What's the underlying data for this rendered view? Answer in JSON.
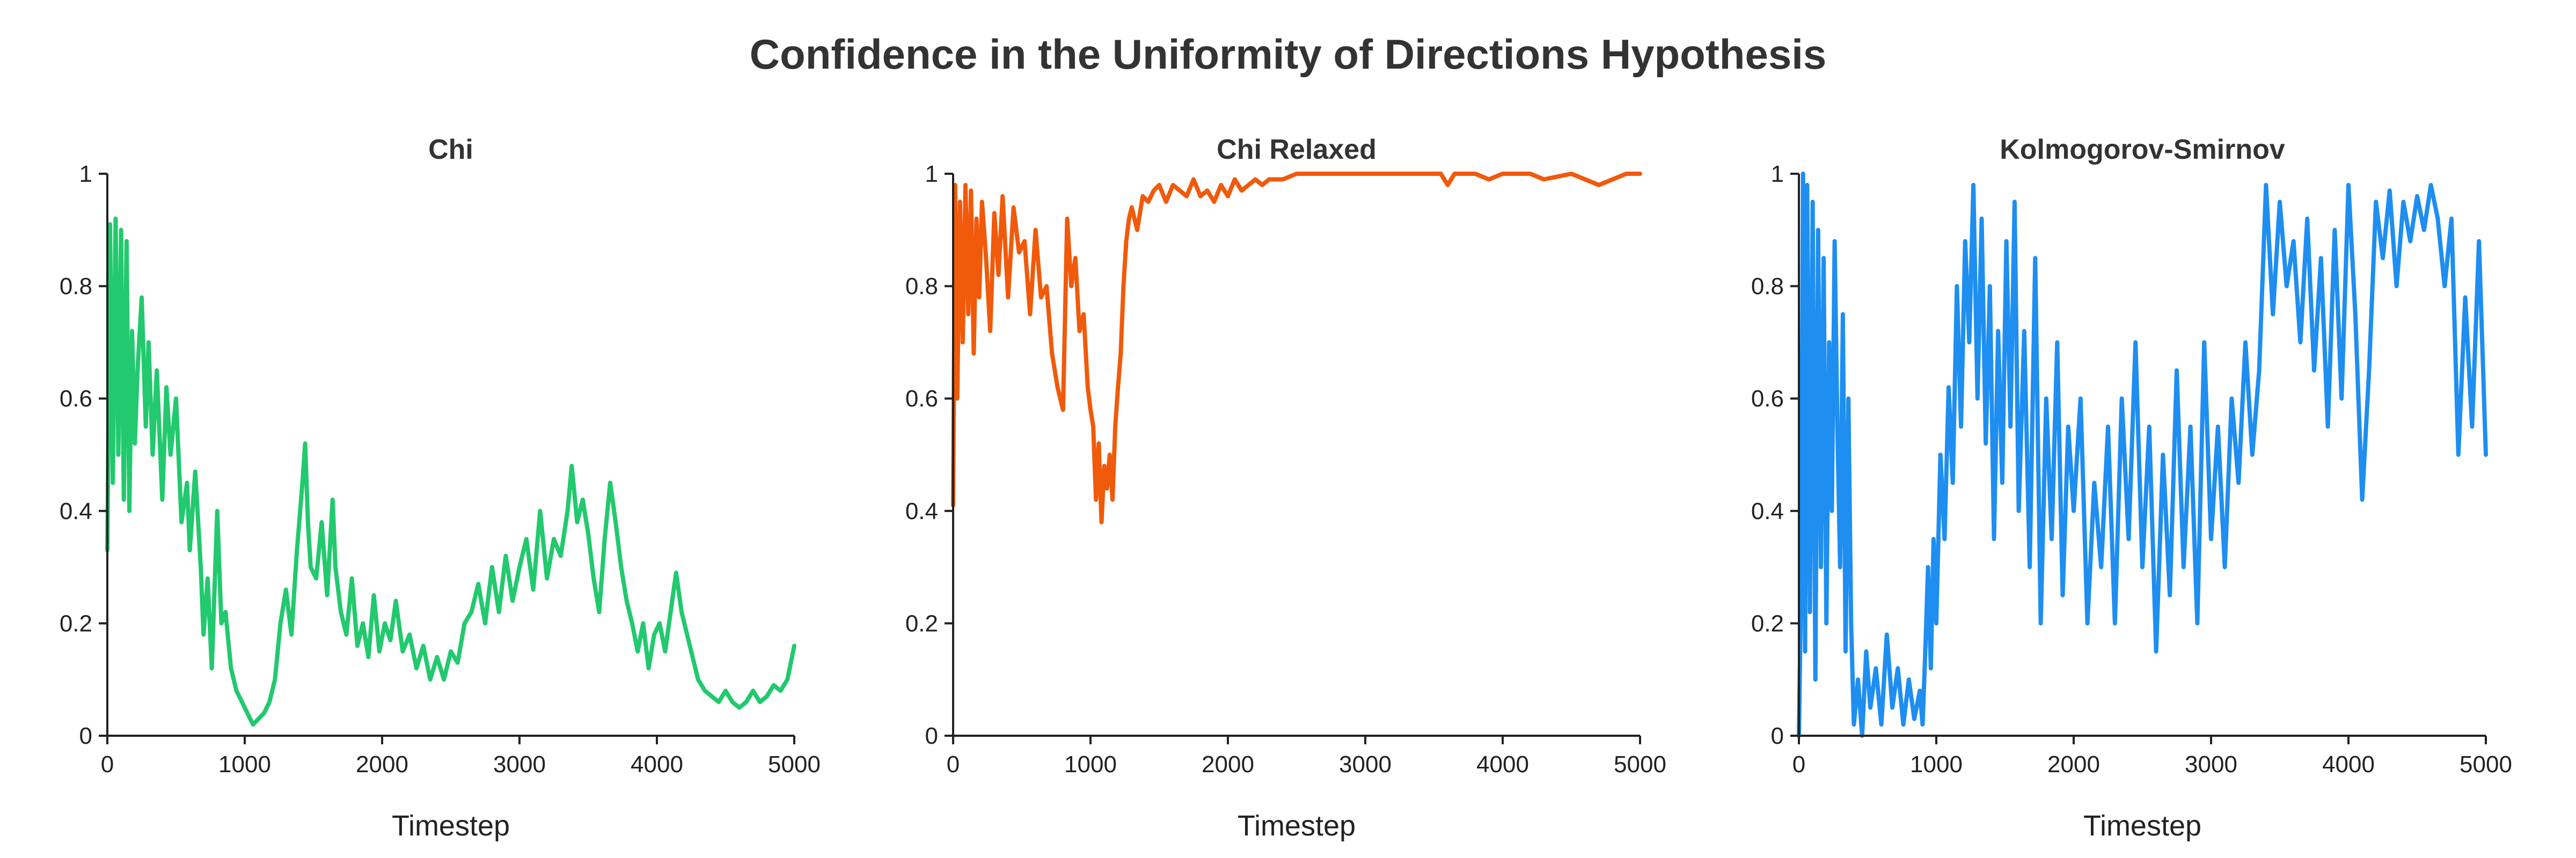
{
  "title": "Confidence in the Uniformity of Directions Hypothesis",
  "chart_data": [
    {
      "type": "line",
      "title": "Chi",
      "xlabel": "Timestep",
      "ylabel": "",
      "xlim": [
        0,
        5000
      ],
      "ylim": [
        0,
        1
      ],
      "xticks": [
        "0",
        "1000",
        "2000",
        "3000",
        "4000",
        "5000"
      ],
      "yticks": [
        "0",
        "0.2",
        "0.4",
        "0.6",
        "0.8",
        "1"
      ],
      "grid": false,
      "color": "#22c96e",
      "series": [
        {
          "x": [
            0,
            20,
            40,
            60,
            80,
            100,
            120,
            140,
            160,
            180,
            200,
            220,
            250,
            280,
            300,
            330,
            360,
            400,
            430,
            460,
            500,
            540,
            580,
            600,
            640,
            680,
            700,
            730,
            760,
            800,
            830,
            860,
            900,
            940,
            980,
            1020,
            1060,
            1100,
            1140,
            1180,
            1220,
            1260,
            1300,
            1340,
            1380,
            1420,
            1440,
            1460,
            1480,
            1520,
            1560,
            1600,
            1640,
            1660,
            1700,
            1740,
            1780,
            1820,
            1860,
            1900,
            1940,
            1980,
            2020,
            2060,
            2100,
            2150,
            2200,
            2250,
            2300,
            2350,
            2400,
            2450,
            2500,
            2550,
            2600,
            2650,
            2700,
            2750,
            2800,
            2850,
            2900,
            2950,
            3000,
            3050,
            3100,
            3150,
            3200,
            3250,
            3300,
            3350,
            3380,
            3420,
            3460,
            3500,
            3540,
            3580,
            3620,
            3660,
            3700,
            3740,
            3780,
            3820,
            3860,
            3900,
            3940,
            3980,
            4020,
            4060,
            4100,
            4140,
            4180,
            4220,
            4260,
            4300,
            4350,
            4400,
            4450,
            4500,
            4550,
            4600,
            4650,
            4700,
            4750,
            4800,
            4850,
            4900,
            4950,
            5000
          ],
          "y": [
            0.33,
            0.91,
            0.45,
            0.92,
            0.5,
            0.9,
            0.42,
            0.88,
            0.4,
            0.72,
            0.52,
            0.65,
            0.78,
            0.55,
            0.7,
            0.5,
            0.65,
            0.42,
            0.62,
            0.5,
            0.6,
            0.38,
            0.45,
            0.33,
            0.47,
            0.3,
            0.18,
            0.28,
            0.12,
            0.4,
            0.2,
            0.22,
            0.12,
            0.08,
            0.06,
            0.04,
            0.02,
            0.03,
            0.04,
            0.06,
            0.1,
            0.2,
            0.26,
            0.18,
            0.33,
            0.45,
            0.52,
            0.38,
            0.3,
            0.28,
            0.38,
            0.25,
            0.42,
            0.3,
            0.22,
            0.18,
            0.28,
            0.16,
            0.2,
            0.14,
            0.25,
            0.15,
            0.2,
            0.17,
            0.24,
            0.15,
            0.18,
            0.12,
            0.16,
            0.1,
            0.14,
            0.1,
            0.15,
            0.13,
            0.2,
            0.22,
            0.27,
            0.2,
            0.3,
            0.22,
            0.32,
            0.24,
            0.3,
            0.35,
            0.26,
            0.4,
            0.28,
            0.35,
            0.32,
            0.4,
            0.48,
            0.38,
            0.42,
            0.36,
            0.28,
            0.22,
            0.35,
            0.45,
            0.38,
            0.3,
            0.24,
            0.2,
            0.15,
            0.2,
            0.12,
            0.18,
            0.2,
            0.15,
            0.22,
            0.29,
            0.22,
            0.18,
            0.14,
            0.1,
            0.08,
            0.07,
            0.06,
            0.08,
            0.06,
            0.05,
            0.06,
            0.08,
            0.06,
            0.07,
            0.09,
            0.08,
            0.1,
            0.16
          ]
        }
      ]
    },
    {
      "type": "line",
      "title": "Chi Relaxed",
      "xlabel": "Timestep",
      "ylabel": "",
      "xlim": [
        0,
        5000
      ],
      "ylim": [
        0,
        1
      ],
      "xticks": [
        "0",
        "1000",
        "2000",
        "3000",
        "4000",
        "5000"
      ],
      "yticks": [
        "0",
        "0.2",
        "0.4",
        "0.6",
        "0.8",
        "1"
      ],
      "grid": false,
      "color": "#f05a0a",
      "series": [
        {
          "x": [
            0,
            15,
            30,
            50,
            70,
            90,
            110,
            130,
            150,
            170,
            190,
            210,
            240,
            270,
            300,
            330,
            360,
            400,
            440,
            480,
            520,
            560,
            600,
            640,
            680,
            720,
            760,
            800,
            830,
            860,
            890,
            920,
            950,
            980,
            1000,
            1020,
            1040,
            1060,
            1080,
            1100,
            1120,
            1140,
            1160,
            1180,
            1200,
            1220,
            1240,
            1260,
            1280,
            1300,
            1340,
            1380,
            1420,
            1460,
            1500,
            1550,
            1600,
            1650,
            1700,
            1750,
            1800,
            1850,
            1900,
            1950,
            2000,
            2050,
            2100,
            2150,
            2200,
            2250,
            2300,
            2400,
            2500,
            2600,
            2700,
            2800,
            2900,
            3000,
            3200,
            3400,
            3550,
            3600,
            3650,
            3800,
            3900,
            4000,
            4200,
            4300,
            4500,
            4600,
            4700,
            4800,
            4900,
            5000
          ],
          "y": [
            0.41,
            0.98,
            0.6,
            0.95,
            0.7,
            0.98,
            0.75,
            0.97,
            0.68,
            0.92,
            0.78,
            0.95,
            0.85,
            0.72,
            0.93,
            0.82,
            0.96,
            0.78,
            0.94,
            0.86,
            0.88,
            0.75,
            0.9,
            0.78,
            0.8,
            0.68,
            0.62,
            0.58,
            0.92,
            0.8,
            0.85,
            0.72,
            0.75,
            0.62,
            0.58,
            0.55,
            0.42,
            0.52,
            0.38,
            0.48,
            0.44,
            0.5,
            0.42,
            0.55,
            0.62,
            0.68,
            0.8,
            0.88,
            0.92,
            0.94,
            0.9,
            0.96,
            0.95,
            0.97,
            0.98,
            0.95,
            0.98,
            0.97,
            0.96,
            0.99,
            0.96,
            0.97,
            0.95,
            0.98,
            0.96,
            0.99,
            0.97,
            0.98,
            0.99,
            0.98,
            0.99,
            0.99,
            1.0,
            1.0,
            1.0,
            1.0,
            1.0,
            1.0,
            1.0,
            1.0,
            1.0,
            0.98,
            1.0,
            1.0,
            0.99,
            1.0,
            1.0,
            0.99,
            1.0,
            0.99,
            0.98,
            0.99,
            1.0,
            1.0
          ]
        }
      ]
    },
    {
      "type": "line",
      "title": "Kolmogorov-Smirnov",
      "xlabel": "Timestep",
      "ylabel": "",
      "xlim": [
        0,
        5000
      ],
      "ylim": [
        0,
        1
      ],
      "xticks": [
        "0",
        "1000",
        "2000",
        "3000",
        "4000",
        "5000"
      ],
      "yticks": [
        "0",
        "0.2",
        "0.4",
        "0.6",
        "0.8",
        "1"
      ],
      "grid": false,
      "color": "#1e8ef0",
      "series": [
        {
          "x": [
            0,
            15,
            30,
            45,
            60,
            80,
            100,
            120,
            140,
            160,
            180,
            200,
            220,
            240,
            260,
            280,
            300,
            320,
            340,
            360,
            380,
            400,
            430,
            460,
            490,
            520,
            560,
            600,
            640,
            680,
            720,
            760,
            800,
            840,
            880,
            900,
            920,
            940,
            960,
            980,
            1000,
            1030,
            1060,
            1090,
            1120,
            1150,
            1180,
            1210,
            1240,
            1270,
            1300,
            1330,
            1360,
            1390,
            1420,
            1450,
            1480,
            1510,
            1540,
            1570,
            1600,
            1640,
            1680,
            1720,
            1760,
            1800,
            1840,
            1880,
            1920,
            1960,
            2000,
            2050,
            2100,
            2150,
            2200,
            2250,
            2300,
            2350,
            2400,
            2450,
            2500,
            2550,
            2600,
            2650,
            2700,
            2750,
            2800,
            2850,
            2900,
            2950,
            3000,
            3050,
            3100,
            3150,
            3200,
            3250,
            3300,
            3350,
            3400,
            3450,
            3500,
            3550,
            3600,
            3650,
            3700,
            3750,
            3800,
            3850,
            3900,
            3950,
            4000,
            4050,
            4100,
            4150,
            4200,
            4250,
            4300,
            4350,
            4400,
            4450,
            4500,
            4550,
            4600,
            4650,
            4700,
            4750,
            4800,
            4850,
            4900,
            4950,
            5000
          ],
          "y": [
            0.0,
            0.25,
            1.0,
            0.15,
            0.98,
            0.22,
            0.95,
            0.1,
            0.9,
            0.3,
            0.85,
            0.2,
            0.7,
            0.4,
            0.88,
            0.55,
            0.3,
            0.75,
            0.15,
            0.6,
            0.2,
            0.02,
            0.1,
            0.0,
            0.15,
            0.05,
            0.12,
            0.02,
            0.18,
            0.05,
            0.12,
            0.02,
            0.1,
            0.03,
            0.08,
            0.02,
            0.15,
            0.3,
            0.12,
            0.35,
            0.2,
            0.5,
            0.35,
            0.62,
            0.45,
            0.8,
            0.55,
            0.88,
            0.7,
            0.98,
            0.6,
            0.92,
            0.52,
            0.8,
            0.35,
            0.72,
            0.45,
            0.88,
            0.55,
            0.95,
            0.4,
            0.72,
            0.3,
            0.85,
            0.2,
            0.6,
            0.35,
            0.7,
            0.25,
            0.55,
            0.4,
            0.6,
            0.2,
            0.45,
            0.3,
            0.55,
            0.2,
            0.6,
            0.35,
            0.7,
            0.3,
            0.55,
            0.15,
            0.5,
            0.25,
            0.65,
            0.3,
            0.55,
            0.2,
            0.7,
            0.35,
            0.55,
            0.3,
            0.6,
            0.45,
            0.7,
            0.5,
            0.65,
            0.98,
            0.75,
            0.95,
            0.8,
            0.88,
            0.7,
            0.92,
            0.65,
            0.85,
            0.55,
            0.9,
            0.6,
            0.98,
            0.75,
            0.42,
            0.65,
            0.95,
            0.85,
            0.97,
            0.8,
            0.95,
            0.88,
            0.96,
            0.9,
            0.98,
            0.92,
            0.8,
            0.92,
            0.5,
            0.78,
            0.55,
            0.88,
            0.5
          ]
        }
      ]
    }
  ]
}
